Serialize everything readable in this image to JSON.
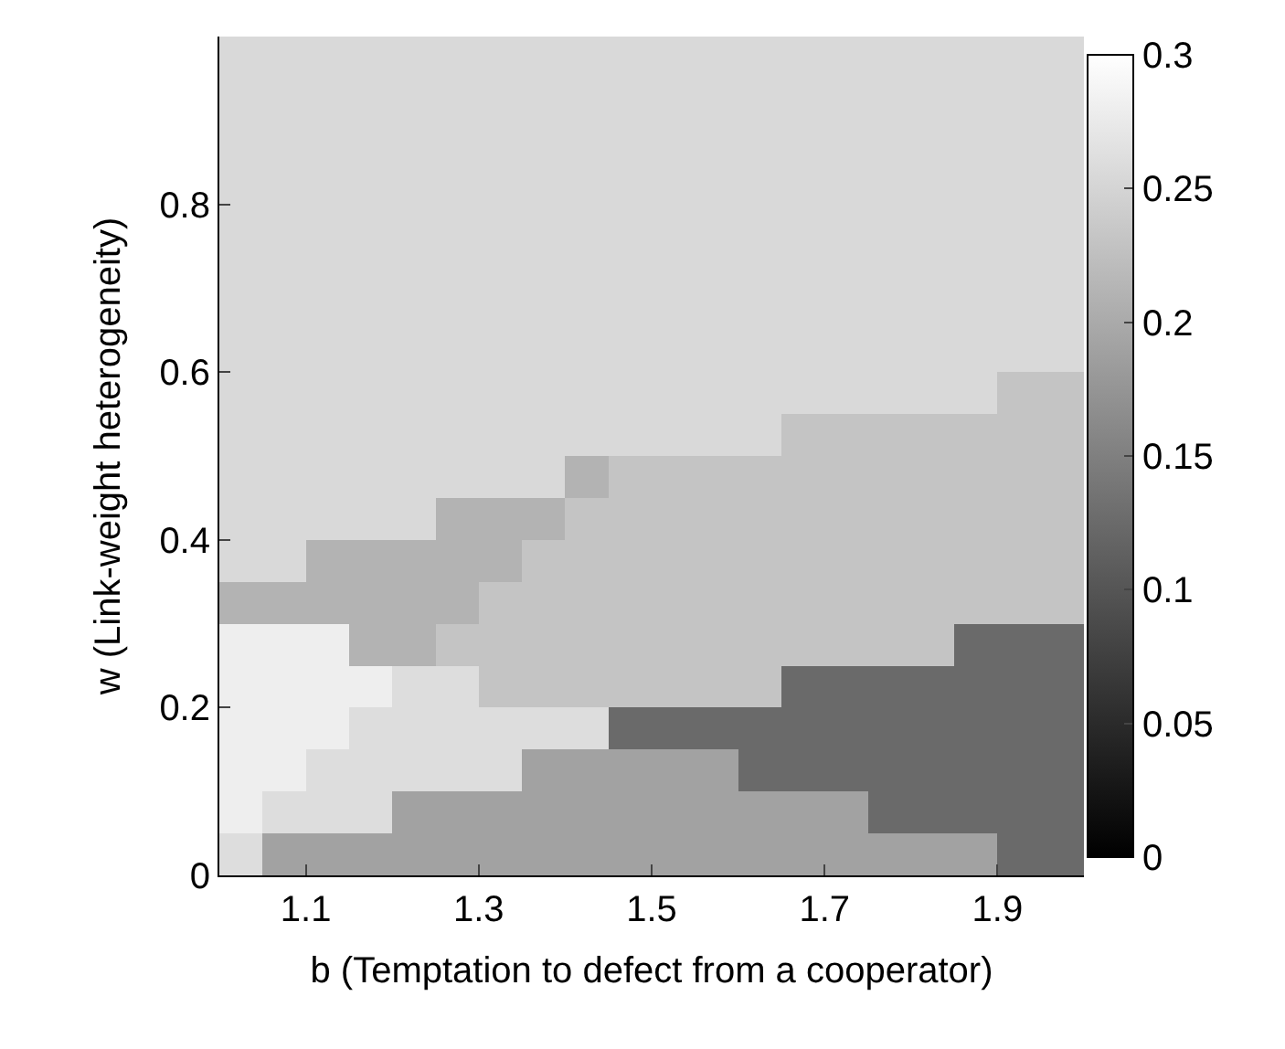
{
  "chart_data": {
    "type": "heatmap",
    "xlabel": "b (Temptation to defect from a cooperator)",
    "ylabel": "w (Link-weight heterogeneity)",
    "x": [
      1.025,
      1.075,
      1.125,
      1.175,
      1.225,
      1.275,
      1.325,
      1.375,
      1.425,
      1.475,
      1.525,
      1.575,
      1.625,
      1.675,
      1.725,
      1.775,
      1.825,
      1.875,
      1.925,
      1.975
    ],
    "y": [
      0.975,
      0.925,
      0.875,
      0.825,
      0.775,
      0.725,
      0.675,
      0.625,
      0.575,
      0.525,
      0.475,
      0.425,
      0.375,
      0.325,
      0.275,
      0.225,
      0.175,
      0.125,
      0.075,
      0.025
    ],
    "cells": [
      [
        0.255,
        0.255,
        0.255,
        0.255,
        0.255,
        0.255,
        0.255,
        0.255,
        0.255,
        0.255,
        0.255,
        0.255,
        0.255,
        0.255,
        0.255,
        0.255,
        0.255,
        0.255,
        0.255,
        0.255
      ],
      [
        0.255,
        0.255,
        0.255,
        0.255,
        0.255,
        0.255,
        0.255,
        0.255,
        0.255,
        0.255,
        0.255,
        0.255,
        0.255,
        0.255,
        0.255,
        0.255,
        0.255,
        0.255,
        0.255,
        0.255
      ],
      [
        0.255,
        0.255,
        0.255,
        0.255,
        0.255,
        0.255,
        0.255,
        0.255,
        0.255,
        0.255,
        0.255,
        0.255,
        0.255,
        0.255,
        0.255,
        0.255,
        0.255,
        0.255,
        0.255,
        0.255
      ],
      [
        0.255,
        0.255,
        0.255,
        0.255,
        0.255,
        0.255,
        0.255,
        0.255,
        0.255,
        0.255,
        0.255,
        0.255,
        0.255,
        0.255,
        0.255,
        0.255,
        0.255,
        0.255,
        0.255,
        0.255
      ],
      [
        0.255,
        0.255,
        0.255,
        0.255,
        0.255,
        0.255,
        0.255,
        0.255,
        0.255,
        0.255,
        0.255,
        0.255,
        0.255,
        0.255,
        0.255,
        0.255,
        0.255,
        0.255,
        0.255,
        0.255
      ],
      [
        0.255,
        0.255,
        0.255,
        0.255,
        0.255,
        0.255,
        0.255,
        0.255,
        0.255,
        0.255,
        0.255,
        0.255,
        0.255,
        0.255,
        0.255,
        0.255,
        0.255,
        0.255,
        0.255,
        0.255
      ],
      [
        0.255,
        0.255,
        0.255,
        0.255,
        0.255,
        0.255,
        0.255,
        0.255,
        0.255,
        0.255,
        0.255,
        0.255,
        0.255,
        0.255,
        0.255,
        0.255,
        0.255,
        0.255,
        0.255,
        0.255
      ],
      [
        0.255,
        0.255,
        0.255,
        0.255,
        0.255,
        0.255,
        0.255,
        0.255,
        0.255,
        0.255,
        0.255,
        0.255,
        0.255,
        0.255,
        0.255,
        0.255,
        0.255,
        0.255,
        0.255,
        0.255
      ],
      [
        0.255,
        0.255,
        0.255,
        0.255,
        0.255,
        0.255,
        0.255,
        0.255,
        0.255,
        0.255,
        0.255,
        0.255,
        0.255,
        0.255,
        0.255,
        0.255,
        0.255,
        0.255,
        0.23,
        0.23
      ],
      [
        0.255,
        0.255,
        0.255,
        0.255,
        0.255,
        0.255,
        0.255,
        0.255,
        0.255,
        0.255,
        0.255,
        0.255,
        0.255,
        0.23,
        0.23,
        0.23,
        0.23,
        0.23,
        0.23,
        0.23
      ],
      [
        0.255,
        0.255,
        0.255,
        0.255,
        0.255,
        0.255,
        0.255,
        0.255,
        0.21,
        0.23,
        0.23,
        0.23,
        0.23,
        0.23,
        0.23,
        0.23,
        0.23,
        0.23,
        0.23,
        0.23
      ],
      [
        0.255,
        0.255,
        0.255,
        0.255,
        0.255,
        0.21,
        0.21,
        0.21,
        0.23,
        0.23,
        0.23,
        0.23,
        0.23,
        0.23,
        0.23,
        0.23,
        0.23,
        0.23,
        0.23,
        0.23
      ],
      [
        0.255,
        0.255,
        0.21,
        0.21,
        0.21,
        0.21,
        0.21,
        0.23,
        0.23,
        0.23,
        0.23,
        0.23,
        0.23,
        0.23,
        0.23,
        0.23,
        0.23,
        0.23,
        0.23,
        0.23
      ],
      [
        0.21,
        0.21,
        0.21,
        0.21,
        0.21,
        0.21,
        0.23,
        0.23,
        0.23,
        0.23,
        0.23,
        0.23,
        0.23,
        0.23,
        0.23,
        0.23,
        0.23,
        0.23,
        0.23,
        0.23
      ],
      [
        0.28,
        0.28,
        0.28,
        0.21,
        0.21,
        0.23,
        0.23,
        0.23,
        0.23,
        0.23,
        0.23,
        0.23,
        0.23,
        0.23,
        0.23,
        0.23,
        0.23,
        0.125,
        0.125,
        0.125
      ],
      [
        0.28,
        0.28,
        0.28,
        0.28,
        0.26,
        0.26,
        0.23,
        0.23,
        0.23,
        0.23,
        0.23,
        0.23,
        0.23,
        0.125,
        0.125,
        0.125,
        0.125,
        0.125,
        0.125,
        0.125
      ],
      [
        0.28,
        0.28,
        0.28,
        0.26,
        0.26,
        0.26,
        0.26,
        0.26,
        0.26,
        0.125,
        0.125,
        0.125,
        0.125,
        0.125,
        0.125,
        0.125,
        0.125,
        0.125,
        0.125,
        0.125
      ],
      [
        0.28,
        0.28,
        0.26,
        0.26,
        0.26,
        0.26,
        0.26,
        0.19,
        0.19,
        0.19,
        0.19,
        0.19,
        0.125,
        0.125,
        0.125,
        0.125,
        0.125,
        0.125,
        0.125,
        0.125
      ],
      [
        0.28,
        0.26,
        0.26,
        0.26,
        0.19,
        0.19,
        0.19,
        0.19,
        0.19,
        0.19,
        0.19,
        0.19,
        0.19,
        0.19,
        0.19,
        0.125,
        0.125,
        0.125,
        0.125,
        0.125
      ],
      [
        0.26,
        0.19,
        0.19,
        0.19,
        0.19,
        0.19,
        0.19,
        0.19,
        0.19,
        0.19,
        0.19,
        0.19,
        0.19,
        0.19,
        0.19,
        0.19,
        0.19,
        0.19,
        0.125,
        0.125
      ]
    ],
    "xlim": [
      1.0,
      2.0
    ],
    "xticks": [
      1.1,
      1.3,
      1.5,
      1.7,
      1.9
    ],
    "ylim": [
      0,
      1.0
    ],
    "yticks": [
      0,
      0.2,
      0.4,
      0.6,
      0.8
    ],
    "clim": [
      0,
      0.3
    ],
    "cticks": [
      0,
      0.05,
      0.1,
      0.15,
      0.2,
      0.25,
      0.3
    ]
  }
}
